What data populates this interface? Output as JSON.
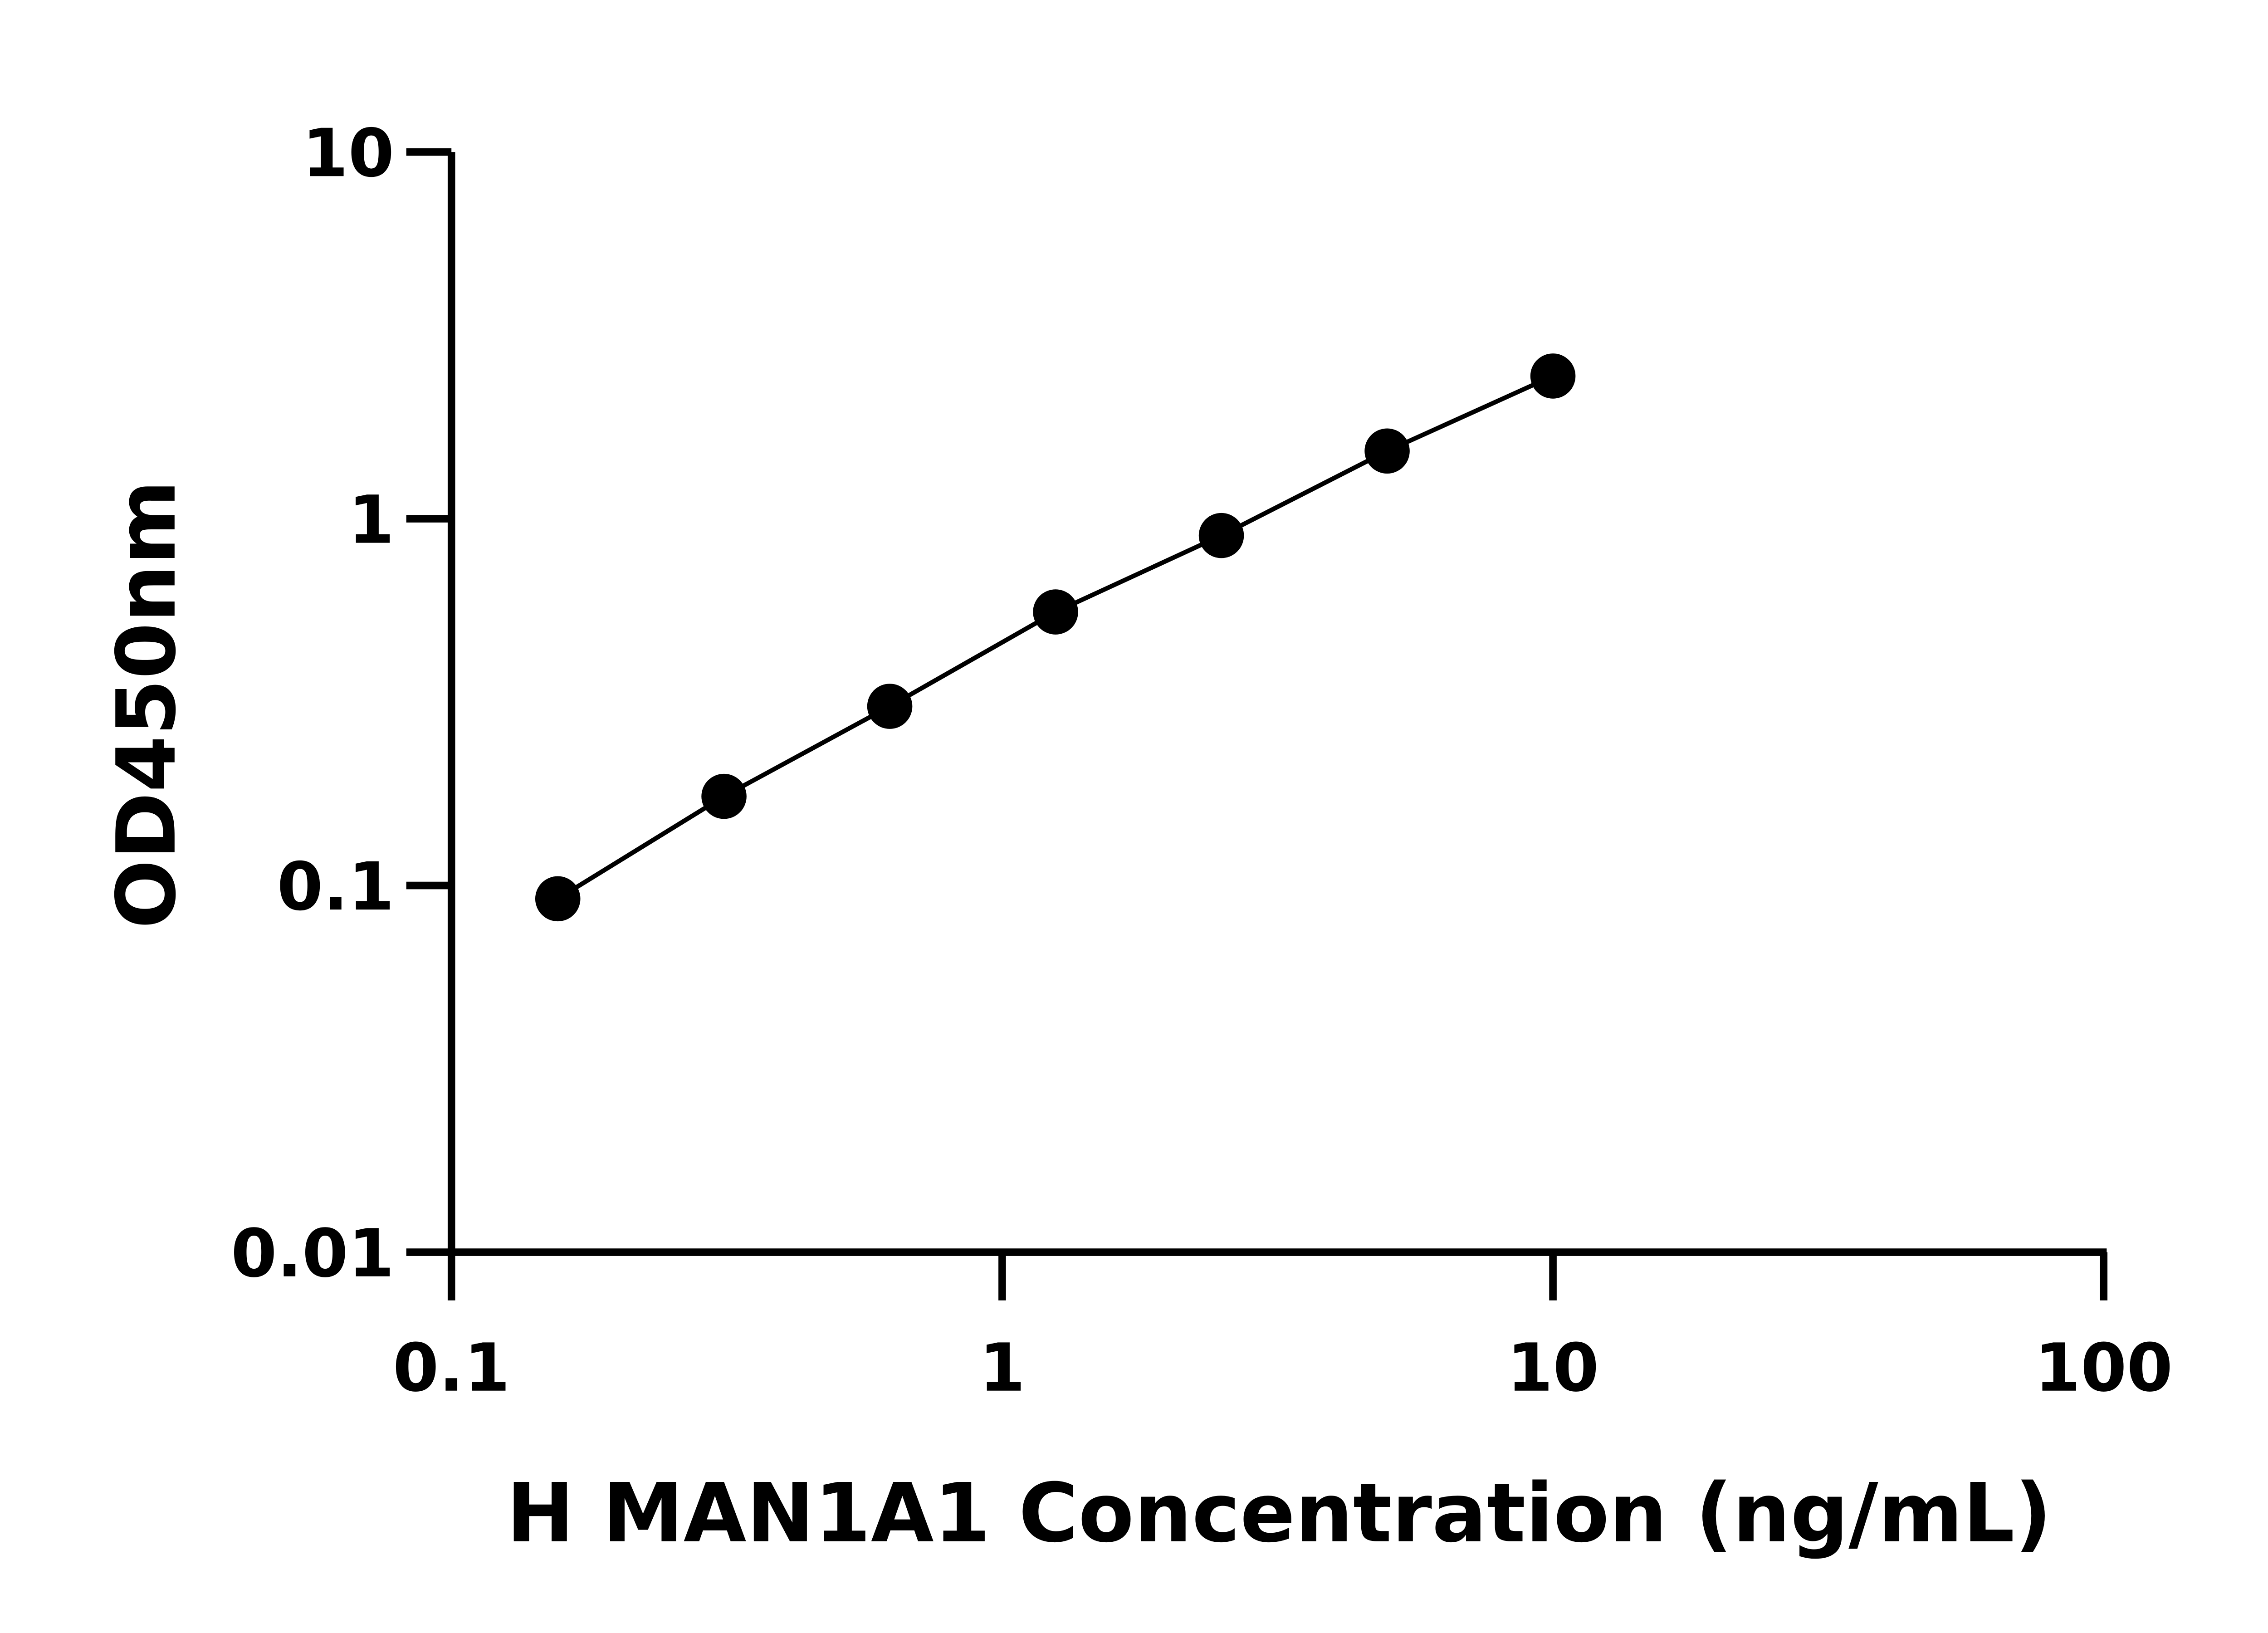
{
  "chart_data": {
    "type": "line",
    "title": "",
    "xlabel": "H MAN1A1 Concentration (ng/mL)",
    "ylabel": "OD450nm",
    "xscale": "log",
    "yscale": "log",
    "xlim": [
      0.1,
      100
    ],
    "ylim": [
      0.01,
      10
    ],
    "xticks": [
      {
        "value": 0.1,
        "label": "0.1"
      },
      {
        "value": 1,
        "label": "1"
      },
      {
        "value": 10,
        "label": "10"
      },
      {
        "value": 100,
        "label": "100"
      }
    ],
    "yticks": [
      {
        "value": 0.01,
        "label": "0.01"
      },
      {
        "value": 0.1,
        "label": "0.1"
      },
      {
        "value": 1,
        "label": "1"
      },
      {
        "value": 10,
        "label": "10"
      }
    ],
    "grid": false,
    "marker": "filled-circle",
    "color": "#000000",
    "series": [
      {
        "x": [
          0.156,
          0.3125,
          0.625,
          1.25,
          2.5,
          5,
          10
        ],
        "y": [
          0.092,
          0.175,
          0.308,
          0.557,
          0.9,
          1.53,
          2.45
        ]
      }
    ]
  }
}
